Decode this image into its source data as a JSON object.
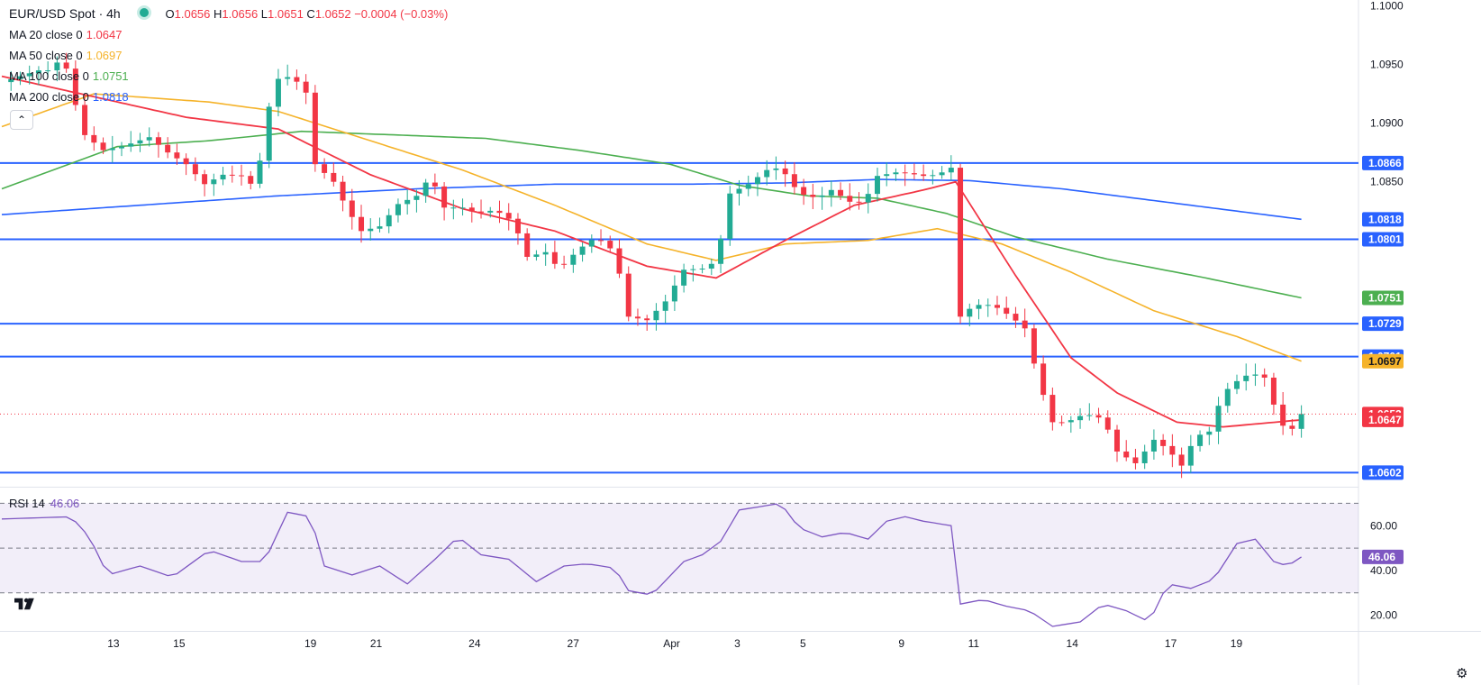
{
  "header": {
    "symbol": "EUR/USD Spot · 4h",
    "open_label": "O",
    "open": "1.0656",
    "high_label": "H",
    "high": "1.0656",
    "low_label": "L",
    "low": "1.0651",
    "close_label": "C",
    "close": "1.0652",
    "change": "−0.0004 (−0.03%)"
  },
  "indicators": [
    {
      "label": "MA 20 close 0",
      "value": "1.0647",
      "color": "#f23645"
    },
    {
      "label": "MA 50 close 0",
      "value": "1.0697",
      "color": "#f5b32a"
    },
    {
      "label": "MA 100 close 0",
      "value": "1.0751",
      "color": "#4caf50"
    },
    {
      "label": "MA 200 close 0",
      "value": "1.0818",
      "color": "#2962ff"
    }
  ],
  "rsi": {
    "label": "RSI 14",
    "value": "46.06",
    "color": "#7e57c2"
  },
  "chart_data": {
    "type": "candlestick",
    "symbol": "EUR/USD Spot",
    "interval": "4h",
    "y_axis": {
      "range": [
        1.059,
        1.1005
      ],
      "ticks": [
        "1.1000",
        "1.0950",
        "1.0900",
        "1.0850"
      ]
    },
    "x_axis": {
      "ticks": [
        "13",
        "15",
        "19",
        "21",
        "24",
        "27",
        "Apr",
        "3",
        "5",
        "9",
        "11",
        "14",
        "17",
        "19"
      ]
    },
    "horizontal_levels": [
      {
        "value": 1.0866,
        "label": "1.0866"
      },
      {
        "value": 1.0801,
        "label": "1.0801"
      },
      {
        "value": 1.0729,
        "label": "1.0729"
      },
      {
        "value": 1.0701,
        "label": "1.0701"
      },
      {
        "value": 1.0602,
        "label": "1.0602"
      }
    ],
    "price_labels": [
      {
        "value": 1.0818,
        "label": "1.0818",
        "color": "#2962ff"
      },
      {
        "value": 1.0751,
        "label": "1.0751",
        "color": "#4caf50"
      },
      {
        "value": 1.0697,
        "label": "1.0697",
        "color": "#f5b32a"
      },
      {
        "value": 1.0652,
        "label": "1.0652",
        "color": "#f23645"
      },
      {
        "value": 1.0647,
        "label": "1.0647",
        "color": "#f23645"
      }
    ],
    "close_path": [
      [
        0,
        1.0935
      ],
      [
        0.8,
        1.0945
      ],
      [
        1.0,
        1.0945
      ],
      [
        1.3,
        1.0955
      ],
      [
        1.5,
        1.0938
      ],
      [
        1.7,
        1.0893
      ],
      [
        2.2,
        1.0877
      ],
      [
        2.6,
        1.088
      ],
      [
        3.2,
        1.0888
      ],
      [
        3.6,
        1.0875
      ],
      [
        4.0,
        1.0865
      ],
      [
        4.4,
        1.0848
      ],
      [
        4.8,
        1.0856
      ],
      [
        5.2,
        1.0855
      ],
      [
        5.5,
        1.0845
      ],
      [
        5.9,
        1.0937
      ],
      [
        6.3,
        1.094
      ],
      [
        6.6,
        1.0926
      ],
      [
        6.8,
        1.0865
      ],
      [
        7.2,
        1.085
      ],
      [
        7.5,
        1.0826
      ],
      [
        7.8,
        1.0808
      ],
      [
        8.2,
        1.0812
      ],
      [
        8.6,
        1.0831
      ],
      [
        9.0,
        1.0838
      ],
      [
        9.3,
        1.0855
      ],
      [
        9.6,
        1.0828
      ],
      [
        10.0,
        1.0828
      ],
      [
        10.3,
        1.0823
      ],
      [
        10.7,
        1.0826
      ],
      [
        11.1,
        1.0816
      ],
      [
        11.4,
        1.0786
      ],
      [
        11.8,
        1.079
      ],
      [
        12.1,
        1.0775
      ],
      [
        12.5,
        1.0792
      ],
      [
        12.9,
        1.0803
      ],
      [
        13.3,
        1.079
      ],
      [
        13.6,
        1.0735
      ],
      [
        14.0,
        1.0732
      ],
      [
        14.4,
        1.0748
      ],
      [
        14.8,
        1.0775
      ],
      [
        15.2,
        1.0776
      ],
      [
        15.5,
        1.0782
      ],
      [
        15.8,
        1.084
      ],
      [
        16.2,
        1.0848
      ],
      [
        16.6,
        1.086
      ],
      [
        16.9,
        1.0862
      ],
      [
        17.3,
        1.084
      ],
      [
        17.7,
        1.0836
      ],
      [
        18.0,
        1.0843
      ],
      [
        18.4,
        1.0833
      ],
      [
        18.7,
        1.0832
      ],
      [
        19.0,
        1.0855
      ],
      [
        19.4,
        1.0858
      ],
      [
        19.7,
        1.0857
      ],
      [
        20.0,
        1.0855
      ],
      [
        20.3,
        1.0856
      ],
      [
        20.6,
        1.0862
      ],
      [
        20.8,
        1.0735
      ],
      [
        21.1,
        1.0745
      ],
      [
        21.5,
        1.0745
      ],
      [
        21.9,
        1.0735
      ],
      [
        22.2,
        1.0725
      ],
      [
        22.5,
        1.068
      ],
      [
        22.8,
        1.0645
      ],
      [
        23.1,
        1.0645
      ],
      [
        23.5,
        1.0652
      ],
      [
        23.9,
        1.0648
      ],
      [
        24.2,
        1.062
      ],
      [
        24.6,
        1.061
      ],
      [
        25.0,
        1.063
      ],
      [
        25.3,
        1.0622
      ],
      [
        25.6,
        1.0608
      ],
      [
        25.9,
        1.0633
      ],
      [
        26.2,
        1.0637
      ],
      [
        26.5,
        1.067
      ],
      [
        26.8,
        1.068
      ],
      [
        27.1,
        1.0687
      ],
      [
        27.4,
        1.0683
      ],
      [
        27.6,
        1.066
      ],
      [
        27.9,
        1.0633
      ],
      [
        28.2,
        1.0652
      ]
    ],
    "ma20": [
      [
        0,
        1.094
      ],
      [
        4,
        1.0905
      ],
      [
        6,
        1.0895
      ],
      [
        8,
        1.0856
      ],
      [
        10,
        1.0827
      ],
      [
        12,
        1.0808
      ],
      [
        14,
        1.0778
      ],
      [
        15.5,
        1.0768
      ],
      [
        17,
        1.08
      ],
      [
        18.5,
        1.083
      ],
      [
        20,
        1.0843
      ],
      [
        20.7,
        1.085
      ],
      [
        22,
        1.077
      ],
      [
        23.2,
        1.07
      ],
      [
        24.2,
        1.067
      ],
      [
        25.5,
        1.0645
      ],
      [
        26.5,
        1.0641
      ],
      [
        28.2,
        1.0647
      ]
    ],
    "ma50": [
      [
        0,
        1.0897
      ],
      [
        2,
        1.0925
      ],
      [
        4.5,
        1.0918
      ],
      [
        6,
        1.091
      ],
      [
        8,
        1.0885
      ],
      [
        10,
        1.086
      ],
      [
        12,
        1.083
      ],
      [
        14,
        1.0797
      ],
      [
        15.5,
        1.0783
      ],
      [
        17,
        1.0797
      ],
      [
        18.8,
        1.08
      ],
      [
        20.3,
        1.081
      ],
      [
        21.7,
        1.0797
      ],
      [
        23.2,
        1.0773
      ],
      [
        25,
        1.074
      ],
      [
        26.8,
        1.0718
      ],
      [
        28.2,
        1.0697
      ]
    ],
    "ma100": [
      [
        0,
        1.0844
      ],
      [
        2.5,
        1.088
      ],
      [
        4.5,
        1.0885
      ],
      [
        6.5,
        1.0893
      ],
      [
        8.5,
        1.089
      ],
      [
        10.5,
        1.0887
      ],
      [
        12.5,
        1.0877
      ],
      [
        14.5,
        1.0865
      ],
      [
        16,
        1.0847
      ],
      [
        17.5,
        1.0838
      ],
      [
        19,
        1.0836
      ],
      [
        20.5,
        1.0823
      ],
      [
        22,
        1.0803
      ],
      [
        24,
        1.0784
      ],
      [
        26,
        1.0769
      ],
      [
        28.2,
        1.0751
      ]
    ],
    "ma200": [
      [
        0,
        1.0822
      ],
      [
        3,
        1.083
      ],
      [
        6,
        1.0838
      ],
      [
        9,
        1.0844
      ],
      [
        12,
        1.0848
      ],
      [
        15,
        1.0848
      ],
      [
        17,
        1.0849
      ],
      [
        19,
        1.0852
      ],
      [
        21,
        1.0851
      ],
      [
        23,
        1.0844
      ],
      [
        25,
        1.0834
      ],
      [
        28.2,
        1.0818
      ]
    ],
    "rsi_panel": {
      "range": [
        15,
        75
      ],
      "ticks": [
        "60.00",
        "40.00",
        "20.00"
      ],
      "bands": [
        70,
        50,
        30
      ],
      "values": [
        [
          0,
          63
        ],
        [
          1.5,
          64
        ],
        [
          1.9,
          55
        ],
        [
          2.3,
          38
        ],
        [
          3.0,
          42
        ],
        [
          3.7,
          37
        ],
        [
          4.5,
          49
        ],
        [
          5.2,
          44
        ],
        [
          5.7,
          44
        ],
        [
          6.2,
          66
        ],
        [
          6.7,
          64
        ],
        [
          7.0,
          42
        ],
        [
          7.6,
          38
        ],
        [
          8.2,
          42
        ],
        [
          8.8,
          34
        ],
        [
          9.4,
          45
        ],
        [
          9.9,
          55
        ],
        [
          10.4,
          47
        ],
        [
          11.0,
          45
        ],
        [
          11.6,
          35
        ],
        [
          12.2,
          42
        ],
        [
          12.7,
          43
        ],
        [
          13.3,
          41
        ],
        [
          13.6,
          31
        ],
        [
          14.1,
          29
        ],
        [
          14.8,
          44
        ],
        [
          15.2,
          47
        ],
        [
          15.6,
          53
        ],
        [
          16.0,
          67
        ],
        [
          16.6,
          69
        ],
        [
          16.9,
          70
        ],
        [
          17.3,
          59
        ],
        [
          17.8,
          55
        ],
        [
          18.3,
          57
        ],
        [
          18.8,
          54
        ],
        [
          19.2,
          62
        ],
        [
          19.6,
          64
        ],
        [
          20.0,
          62
        ],
        [
          20.6,
          60
        ],
        [
          20.8,
          25
        ],
        [
          21.3,
          27
        ],
        [
          21.8,
          24
        ],
        [
          22.3,
          22
        ],
        [
          22.8,
          15
        ],
        [
          23.4,
          17
        ],
        [
          23.9,
          25
        ],
        [
          24.4,
          22
        ],
        [
          24.9,
          17
        ],
        [
          25.3,
          34
        ],
        [
          25.8,
          32
        ],
        [
          26.3,
          36
        ],
        [
          26.8,
          52
        ],
        [
          27.2,
          54
        ],
        [
          27.6,
          44
        ],
        [
          27.9,
          42
        ],
        [
          28.2,
          46.06
        ]
      ]
    }
  },
  "colors": {
    "up": "#22ab94",
    "down": "#f23645",
    "level": "#2962ff",
    "grid": "#e0e3eb"
  },
  "icons": {
    "logo": "tradingview-logo",
    "settings": "gear-icon",
    "collapse": "chevron-up-icon",
    "market": "market-open-icon"
  }
}
